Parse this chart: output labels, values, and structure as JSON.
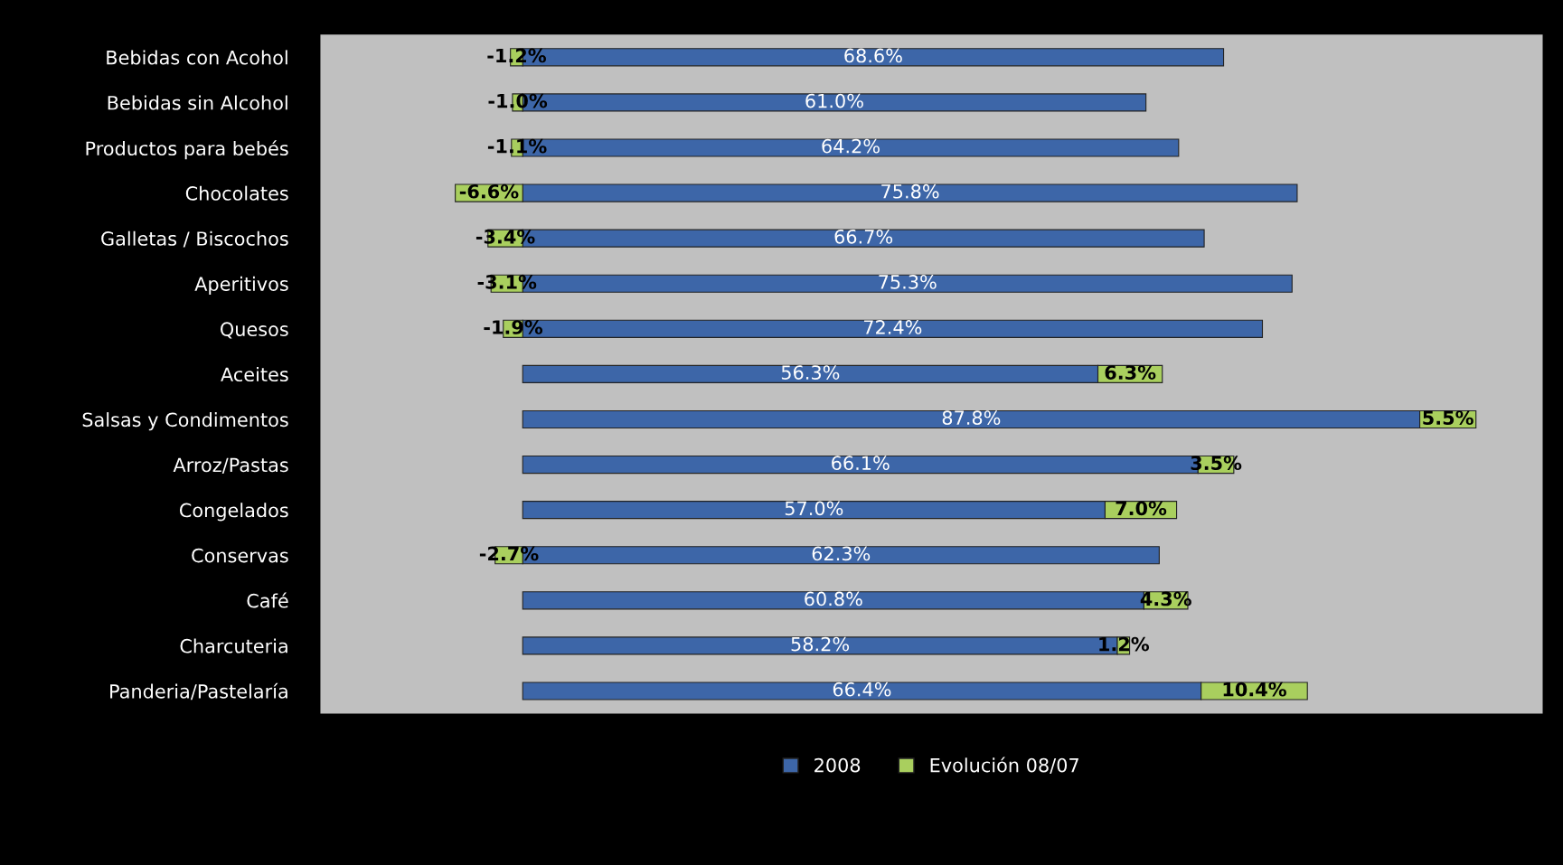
{
  "chart_data": {
    "type": "bar",
    "orientation": "horizontal",
    "stacked": true,
    "legend": "bottom",
    "grid": false,
    "tick_labels": "y",
    "categories": [
      "Bebidas con Acohol",
      "Bebidas sin Alcohol",
      "Productos para bebés",
      "Chocolates",
      "Galletas / Biscochos",
      "Aperitivos",
      "Quesos",
      "Aceites",
      "Salsas y Condimentos",
      "Arroz/Pastas",
      "Congelados",
      "Conservas",
      "Café",
      "Charcuteria",
      "Panderia/Pastelaría"
    ],
    "series": [
      {
        "name": "2008",
        "color": "#3d66a8",
        "values": [
          68.6,
          61.0,
          64.2,
          75.8,
          66.7,
          75.3,
          72.4,
          56.3,
          87.8,
          66.1,
          57.0,
          62.3,
          60.8,
          58.2,
          66.4
        ],
        "value_labels": [
          "68.6%",
          "61.0%",
          "64.2%",
          "75.8%",
          "66.7%",
          "75.3%",
          "72.4%",
          "56.3%",
          "87.8%",
          "66.1%",
          "57.0%",
          "62.3%",
          "60.8%",
          "58.2%",
          "66.4%"
        ]
      },
      {
        "name": "Evolución 08/07",
        "color": "#a9cf5e",
        "values": [
          -1.2,
          -1.0,
          -1.1,
          -6.6,
          -3.4,
          -3.1,
          -1.9,
          6.3,
          5.5,
          3.5,
          7.0,
          -2.7,
          4.3,
          1.2,
          10.4
        ],
        "value_labels": [
          "-1.2%",
          "-1.0%",
          "-1.1%",
          "-6.6%",
          "-3.4%",
          "-3.1%",
          "-1.9%",
          "6.3%",
          "5.5%",
          "3.5%",
          "7.0%",
          "-2.7%",
          "4.3%",
          "1.2%",
          "10.4%"
        ]
      }
    ]
  }
}
